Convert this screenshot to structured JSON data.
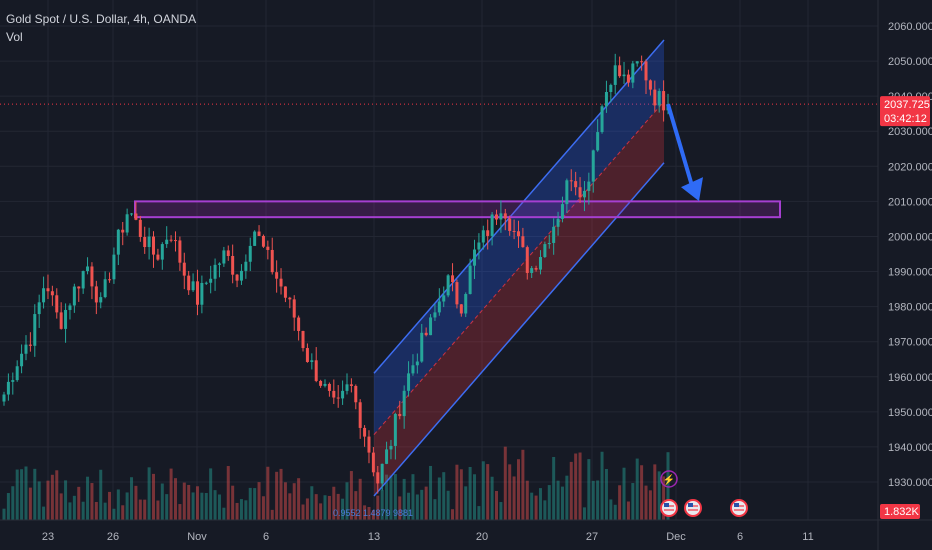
{
  "legend": {
    "title": "Gold Spot / U.S. Dollar, 4h, OANDA",
    "volume": "Vol"
  },
  "price_badge": {
    "price": "2037.725",
    "countdown": "03:42:12"
  },
  "volume_badge": "1.832K",
  "colors": {
    "background": "#161a25",
    "up": "#26a69a",
    "down": "#ef5350",
    "channel_line": "#3d6df2",
    "zone": "#a63fd1",
    "arrow": "#2f6bf5",
    "grid": "#232733",
    "badge_red": "#f23645"
  },
  "icons": [
    "lightning-event-icon",
    "us-flag-event-icon"
  ],
  "chart_data": {
    "type": "candlestick",
    "x_ticks": [
      "23",
      "26",
      "Nov",
      "6",
      "13",
      "20",
      "27",
      "Dec",
      "6",
      "11"
    ],
    "y_ticks": [
      1930,
      1940,
      1950,
      1960,
      1970,
      1980,
      1990,
      2000,
      2010,
      2020,
      2030,
      2040,
      2050,
      2060
    ],
    "y_tick_labels": [
      "1930.000",
      "1940.000",
      "1950.000",
      "1960.000",
      "1970.000",
      "1980.000",
      "1990.000",
      "2000.000",
      "2010.000",
      "2020.000",
      "2030.000",
      "2040.000",
      "2050.000",
      "2060.000"
    ],
    "ylim": [
      1921,
      2067
    ],
    "grid": true,
    "current_price": 2037.725,
    "price_path": [
      1955,
      1965,
      1972,
      1988,
      1975,
      1984,
      1992,
      1980,
      1996,
      2008,
      2000,
      1994,
      2002,
      1990,
      1982,
      1990,
      1995,
      1988,
      2003,
      1994,
      1986,
      1977,
      1965,
      1958,
      1950,
      1958,
      1945,
      1930,
      1942,
      1958,
      1968,
      1976,
      1988,
      1980,
      1995,
      2002,
      2010,
      2000,
      1990,
      1997,
      2006,
      2018,
      2012,
      2034,
      2048,
      2044,
      2050,
      2040,
      2037.725
    ],
    "resistance_zone": {
      "low": 2005.5,
      "high": 2010
    },
    "channel": {
      "upper_start": 1961,
      "upper_end": 2056,
      "mid_start": 1943.5,
      "mid_end": 2038.5,
      "lower_start": 1926,
      "lower_end": 2021
    },
    "projection_arrow": {
      "from_price": 2037.725,
      "to_price": 2009.5
    },
    "overlay_text": "0.9552 1.4879 9881"
  }
}
